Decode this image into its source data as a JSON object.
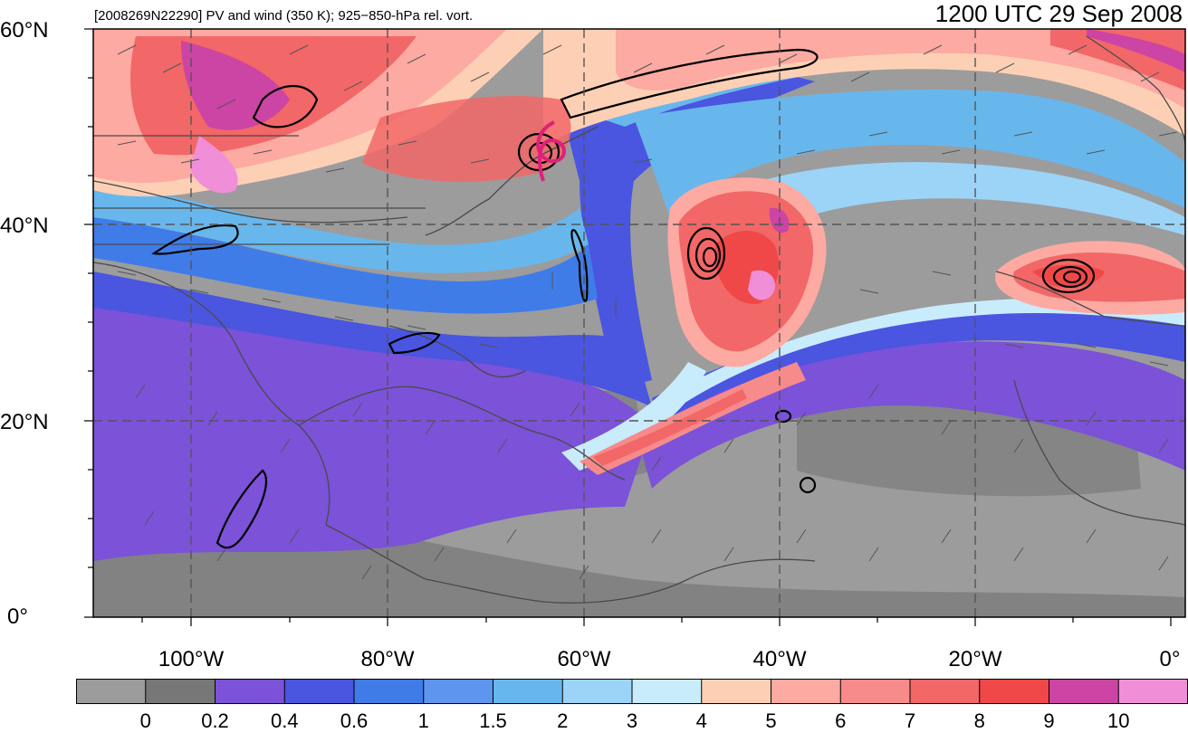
{
  "header": {
    "left_text": "[2008269N22290] PV and wind (350 K); 925−850-hPa rel. vort.",
    "right_text": "1200 UTC 29 Sep 2008"
  },
  "axes": {
    "lat_labels": [
      "60°N",
      "40°N",
      "20°N",
      "0°"
    ],
    "lon_labels": [
      "100°W",
      "80°W",
      "60°W",
      "40°W",
      "20°W",
      "0°"
    ]
  },
  "colorbar": {
    "tick_labels": [
      "0",
      "0.2",
      "0.4",
      "0.6",
      "1",
      "1.5",
      "2",
      "3",
      "4",
      "5",
      "6",
      "7",
      "8",
      "9",
      "10"
    ],
    "colors": [
      "#9c9c9c",
      "#777777",
      "#7b52d8",
      "#4a55e0",
      "#3f7ce8",
      "#5e95ee",
      "#68b7ec",
      "#9bd4f7",
      "#c9ecfc",
      "#fdd0b5",
      "#fcaaa2",
      "#f78a8a",
      "#f26767",
      "#f04848",
      "#cc44a4",
      "#f08fd8"
    ]
  },
  "map": {
    "colors": {
      "gray_dark": "#777777",
      "gray_light": "#9c9c9c",
      "purple": "#7b52d8",
      "blue": "#4a55e0",
      "mid_blue": "#3f7ce8",
      "light_blue": "#68b7ec",
      "pale_blue": "#c9ecfc",
      "peach": "#fdd0b5",
      "pink": "#fcaaa2",
      "red": "#f26767",
      "magenta": "#cc44a4",
      "light_magenta": "#f08fd8",
      "track": "#e0207a"
    }
  }
}
